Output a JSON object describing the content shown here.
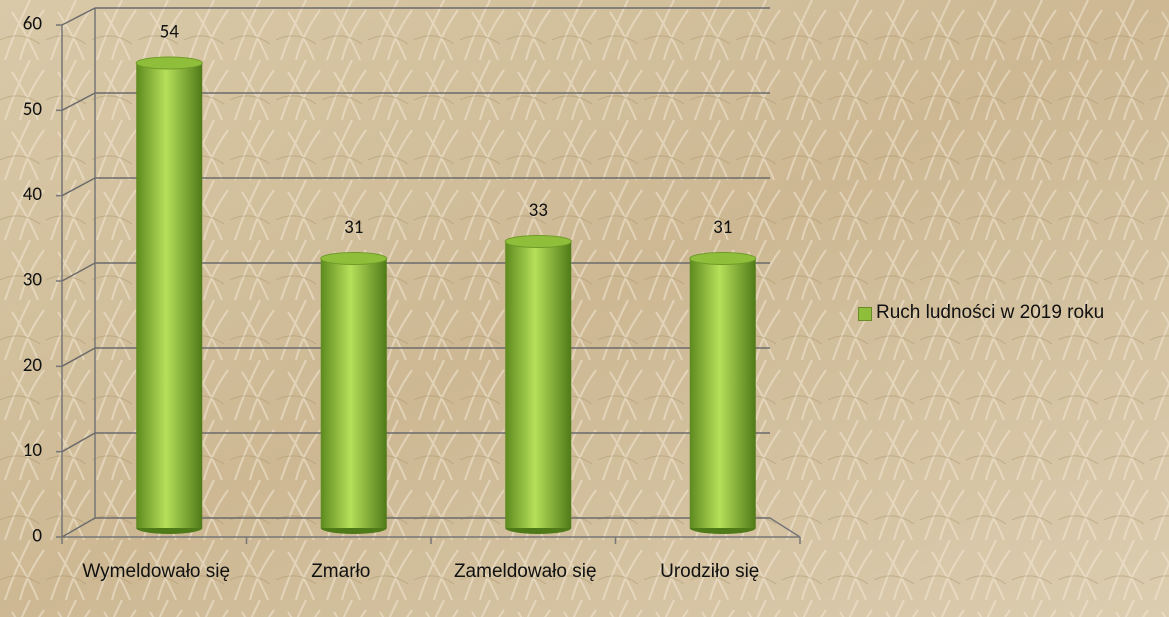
{
  "chart_data": {
    "type": "bar",
    "categories": [
      "Wymeldowało się",
      "Zmarło",
      "Zameldowało się",
      "Urodziło się"
    ],
    "series": [
      {
        "name": "Ruch ludności w 2019 roku",
        "color": "#8fbf3a",
        "values": [
          54,
          31,
          33,
          31
        ]
      }
    ],
    "ylim": [
      0,
      60
    ],
    "yticks": [
      0,
      10,
      20,
      30,
      40,
      50,
      60
    ],
    "grid": true,
    "legend": "right"
  }
}
